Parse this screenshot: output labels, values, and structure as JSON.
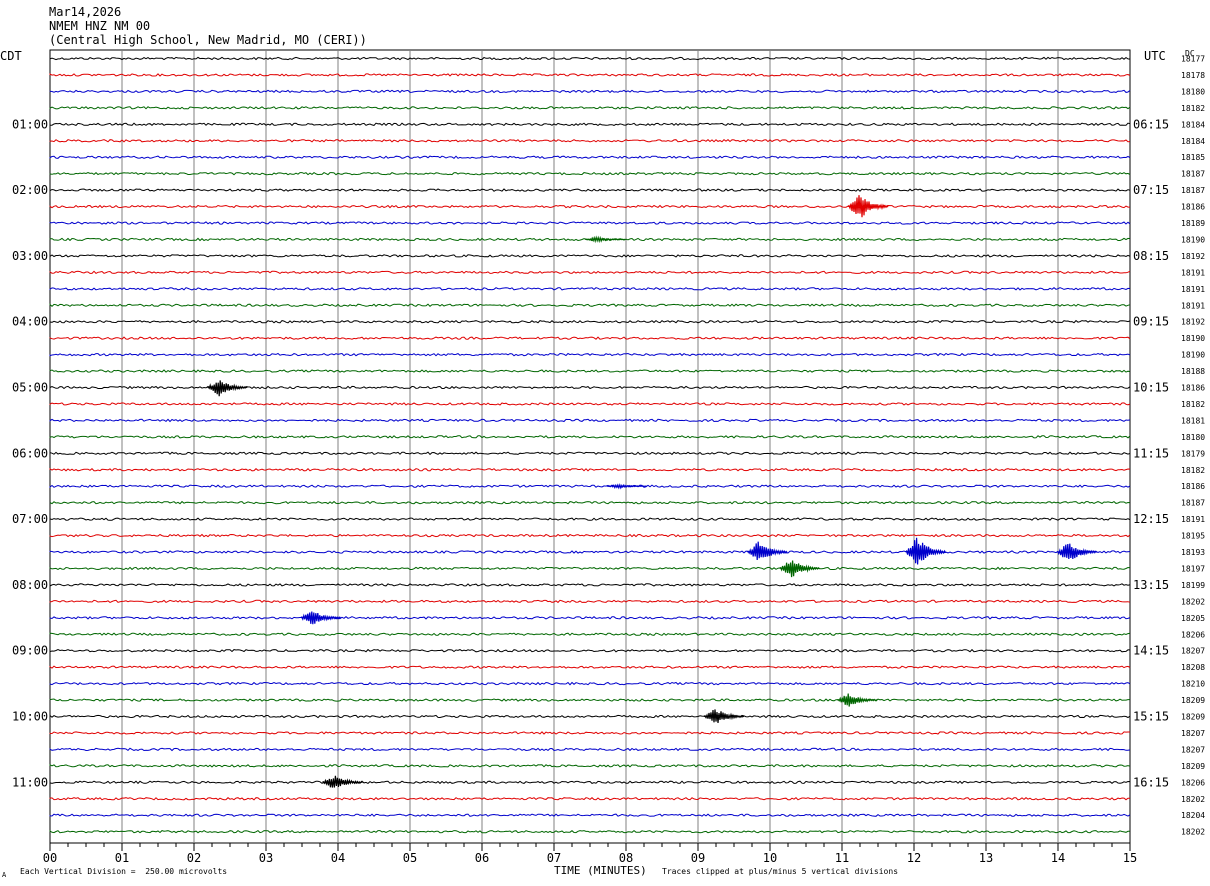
{
  "header": {
    "date": "Mar14,2026",
    "station": "NMEM HNZ NM 00",
    "location": "(Central High School, New Madrid, MO (CERI))"
  },
  "left_tz": "CDT",
  "right_tz": "UTC",
  "dc_label": "DC",
  "footer": {
    "scale": "Each Vertical Division =  250.00 microvolts",
    "xlabel": "TIME (MINUTES)",
    "clip": "Traces clipped at plus/minus 5 vertical divisions",
    "corner_mark": "A"
  },
  "colors": {
    "cycle": [
      "#000000",
      "#e00000",
      "#0000cc",
      "#006600"
    ],
    "grid": "#808080"
  },
  "chart_data": {
    "type": "line",
    "title": "NMEM HNZ NM 00",
    "xlabel": "TIME (MINUTES)",
    "x_ticks": [
      "00",
      "01",
      "02",
      "03",
      "04",
      "05",
      "06",
      "07",
      "08",
      "09",
      "10",
      "11",
      "12",
      "13",
      "14",
      "15"
    ],
    "xlim": [
      0,
      15
    ],
    "minutes_per_row": 15,
    "rows_total": 48,
    "left_hour_labels": [
      "01:00",
      "02:00",
      "03:00",
      "04:00",
      "05:00",
      "06:00",
      "07:00",
      "08:00",
      "09:00",
      "10:00",
      "11:00"
    ],
    "right_hour_labels": [
      "06:15",
      "07:15",
      "08:15",
      "09:15",
      "10:15",
      "11:15",
      "12:15",
      "13:15",
      "14:15",
      "15:15",
      "16:15"
    ],
    "dc_offsets": [
      18177,
      18178,
      18180,
      18182,
      18184,
      18184,
      18185,
      18187,
      18187,
      18186,
      18189,
      18190,
      18192,
      18191,
      18191,
      18191,
      18192,
      18190,
      18190,
      18188,
      18186,
      18182,
      18181,
      18180,
      18179,
      18182,
      18186,
      18187,
      18191,
      18195,
      18193,
      18197,
      18199,
      18202,
      18205,
      18206,
      18207,
      18208,
      18210,
      18209,
      18209,
      18207,
      18207,
      18209,
      18206,
      18202,
      18204,
      18202
    ],
    "events": [
      {
        "row": 9,
        "minute": 11.25,
        "amplitude": 3.5
      },
      {
        "row": 11,
        "minute": 7.6,
        "amplitude": 0.6
      },
      {
        "row": 20,
        "minute": 2.35,
        "amplitude": 2.2
      },
      {
        "row": 26,
        "minute": 7.9,
        "amplitude": 0.5
      },
      {
        "row": 30,
        "minute": 9.85,
        "amplitude": 3.0
      },
      {
        "row": 30,
        "minute": 12.05,
        "amplitude": 4.0
      },
      {
        "row": 30,
        "minute": 14.15,
        "amplitude": 2.8
      },
      {
        "row": 31,
        "minute": 10.3,
        "amplitude": 2.6
      },
      {
        "row": 34,
        "minute": 3.65,
        "amplitude": 2.2
      },
      {
        "row": 39,
        "minute": 11.1,
        "amplitude": 1.8
      },
      {
        "row": 40,
        "minute": 9.25,
        "amplitude": 2.2
      },
      {
        "row": 44,
        "minute": 3.95,
        "amplitude": 2.0
      }
    ]
  }
}
